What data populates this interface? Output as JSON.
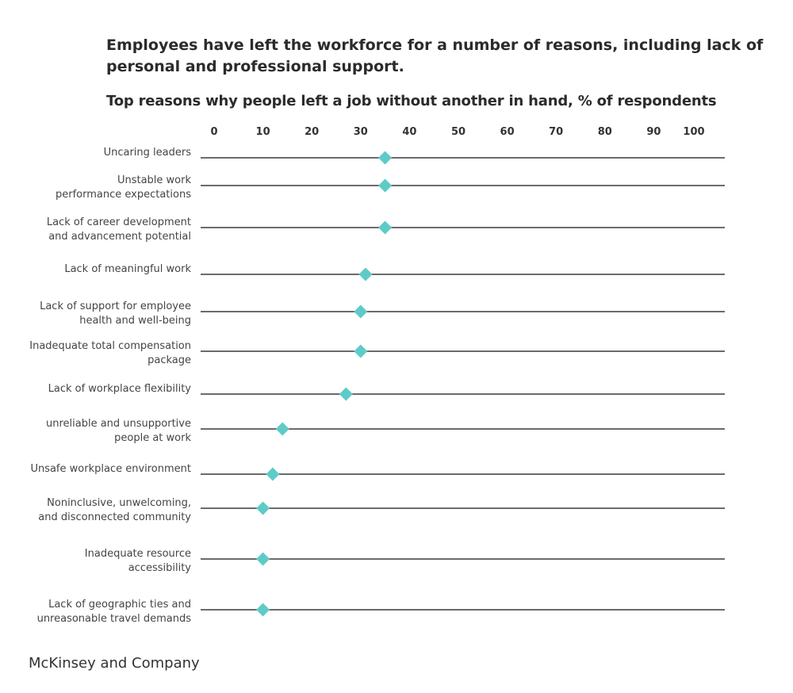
{
  "title": "Employees have left the workforce for a number of reasons, including lack of personal and professional support.",
  "subtitle": "Top reasons why people left a job without another in hand, % of respondents",
  "footer": "McKinsey and Company",
  "chart_data": {
    "type": "dot",
    "title": "Top reasons why people left a job without another in hand, % of respondents",
    "xlim": [
      0,
      100
    ],
    "xticks": [
      "0",
      "10",
      "20",
      "30",
      "40",
      "50",
      "60",
      "70",
      "80",
      "90",
      "100"
    ],
    "marker_color": "#5ecbc8",
    "line_color": "#3a3a3a",
    "categories": [
      [
        "Uncaring leaders"
      ],
      [
        "Unstable work",
        "performance expectations"
      ],
      [
        "Lack of career development",
        "and advancement potential"
      ],
      [
        "Lack of meaningful work"
      ],
      [
        "Lack of support for employee",
        "health and well-being"
      ],
      [
        "Inadequate total compensation",
        "package"
      ],
      [
        "Lack of workplace flexibility"
      ],
      [
        "unreliable and unsupportive",
        "people at work"
      ],
      [
        "Unsafe workplace environment"
      ],
      [
        "Noninclusive, unwelcoming,",
        "and disconnected community"
      ],
      [
        "Inadequate resource",
        "accessibility"
      ],
      [
        "Lack of geographic ties and",
        "unreasonable travel demands"
      ]
    ],
    "values": [
      35,
      35,
      35,
      31,
      30,
      30,
      27,
      14,
      12,
      10,
      10,
      10
    ]
  }
}
